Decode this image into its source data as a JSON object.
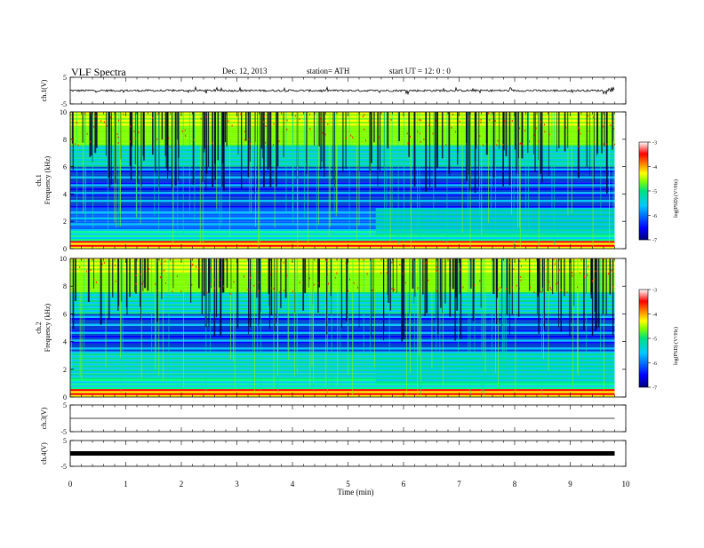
{
  "header": {
    "title": "VLF  Spectra",
    "date": "Dec. 12, 2013",
    "station": "station= ATH",
    "start": "start  UT  =    12: 0  : 0"
  },
  "chart_data": {
    "type": "heatmap",
    "x_axis": {
      "label": "Time  (min)",
      "range": [
        0,
        10
      ],
      "ticks": [
        "0",
        "1",
        "2",
        "3",
        "4",
        "5",
        "6",
        "7",
        "8",
        "9",
        "10"
      ],
      "data_end": 9.8
    },
    "panels": [
      {
        "kind": "waveform",
        "ylabel": "ch.1(V)",
        "ylim": [
          -5,
          5
        ],
        "ticks": [
          "5",
          "-5"
        ],
        "level": 0.0
      },
      {
        "kind": "spectrogram",
        "ylabel_line1": "ch.1",
        "ylabel_line2": "Frequency  (kHz)",
        "ylim": [
          0,
          10
        ],
        "ticks": [
          "0",
          "2",
          "4",
          "6",
          "8",
          "10"
        ],
        "colorbar": {
          "label": "log(PSD) (V²/Hz)",
          "range": [
            -7,
            -3
          ],
          "ticks": [
            "-3",
            "-4",
            "-5",
            "-6",
            "-7"
          ]
        },
        "band_change_time": 5.5
      },
      {
        "kind": "spectrogram",
        "ylabel_line1": "ch.2",
        "ylabel_line2": "Frequency  (kHz)",
        "ylim": [
          0,
          10
        ],
        "ticks": [
          "0",
          "2",
          "4",
          "6",
          "8",
          "10"
        ],
        "colorbar": {
          "label": "log(PSD) (V²/Hz)",
          "range": [
            -7,
            -3
          ],
          "ticks": [
            "-3",
            "-4",
            "-5",
            "-6",
            "-7"
          ]
        },
        "band_change_time": 5.5
      },
      {
        "kind": "waveform",
        "ylabel": "ch.3(V)",
        "ylim": [
          -5,
          5
        ],
        "ticks": [
          "5",
          "-5"
        ],
        "level": 0.0
      },
      {
        "kind": "waveform",
        "ylabel": "ch.4(V)",
        "ylim": [
          -5,
          5
        ],
        "ticks": [
          "5",
          "-5"
        ],
        "level": 0.0
      }
    ],
    "colorscale": [
      "#00007a",
      "#0000ff",
      "#00c8ff",
      "#00e080",
      "#80ff00",
      "#ffff00",
      "#ff8000",
      "#ff0000",
      "#ffffff"
    ],
    "grid": false
  }
}
